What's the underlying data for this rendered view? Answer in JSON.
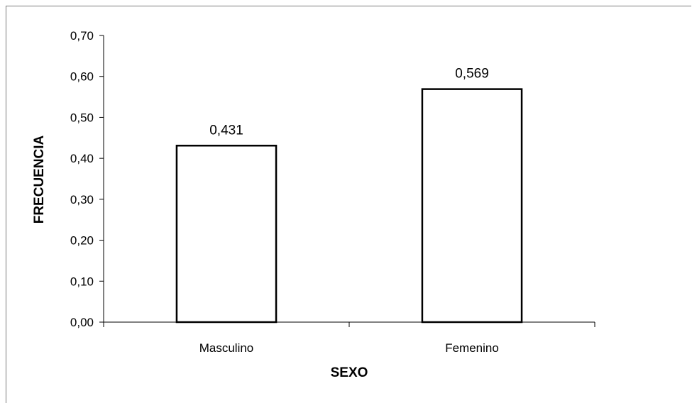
{
  "chart_data": {
    "type": "bar",
    "categories": [
      "Masculino",
      "Femenino"
    ],
    "values": [
      0.431,
      0.569
    ],
    "value_labels": [
      "0,431",
      "0,569"
    ],
    "xlabel": "SEXO",
    "ylabel": "FRECUENCIA",
    "ylim": [
      0,
      0.7
    ],
    "yticks": [
      0,
      0.1,
      0.2,
      0.3,
      0.4,
      0.5,
      0.6,
      0.7
    ],
    "ytick_labels": [
      "0,00",
      "0,10",
      "0,20",
      "0,30",
      "0,40",
      "0,50",
      "0,60",
      "0,70"
    ],
    "grid": false,
    "bar_fill": "#ffffff",
    "bar_stroke": "#000000"
  }
}
